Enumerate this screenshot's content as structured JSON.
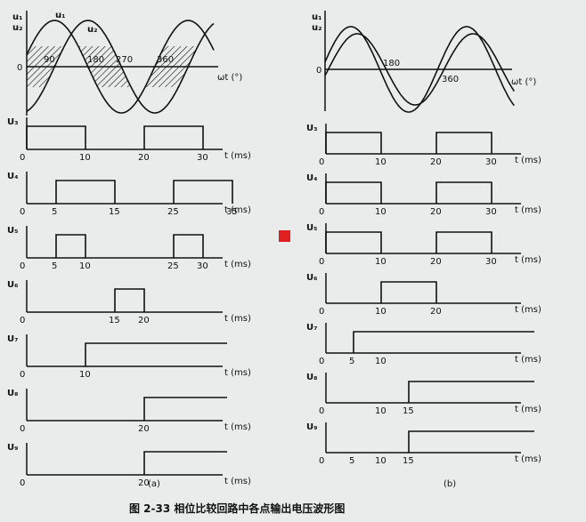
{
  "figure": {
    "caption": "图 2-33   相位比较回路中各点输出电压波形图",
    "sublabel_a": "(a)",
    "sublabel_b": "(b)",
    "marker_color": "#e02020",
    "ink_color": "#111111",
    "background_color": "#e9ecea"
  },
  "panel_a": {
    "top": {
      "u1": "u₁",
      "u2": "u₂",
      "ylabel1": "u₁",
      "ylabel2": "u₂",
      "xlabel": "ωt (°)",
      "zero": "0",
      "angle_labels": [
        "90",
        "180",
        "270",
        "360"
      ]
    },
    "rows": [
      {
        "id": "U3",
        "label": "U₃",
        "xlabel": "t (ms)",
        "ticks": [
          "0",
          "10",
          "20",
          "30"
        ],
        "pulses": [
          [
            0,
            10
          ],
          [
            20,
            30
          ]
        ]
      },
      {
        "id": "U4",
        "label": "U₄",
        "xlabel": "t (ms)",
        "ticks": [
          "0",
          "5",
          "15",
          "25",
          "35"
        ],
        "pulses": [
          [
            5,
            15
          ],
          [
            25,
            35
          ]
        ]
      },
      {
        "id": "U5",
        "label": "U₅",
        "xlabel": "t (ms)",
        "ticks": [
          "0",
          "5",
          "10",
          "25",
          "30"
        ],
        "pulses": [
          [
            5,
            10
          ],
          [
            25,
            30
          ]
        ]
      },
      {
        "id": "U6",
        "label": "U₆",
        "xlabel": "t (ms)",
        "ticks": [
          "0",
          "15",
          "20"
        ],
        "pulses": [
          [
            15,
            20
          ]
        ]
      },
      {
        "id": "U7",
        "label": "U₇",
        "xlabel": "t (ms)",
        "ticks": [
          "0",
          "10"
        ],
        "step": 10
      },
      {
        "id": "U8",
        "label": "U₈",
        "xlabel": "t (ms)",
        "ticks": [
          "0",
          "20"
        ],
        "step": 20
      },
      {
        "id": "U9",
        "label": "U₉",
        "xlabel": "t (ms)",
        "ticks": [
          "0",
          "20"
        ],
        "step": 20
      }
    ]
  },
  "panel_b": {
    "top": {
      "u1": "u₁",
      "u2": "u₂",
      "xlabel": "ωt (°)",
      "zero": "0",
      "angle_labels": [
        "180",
        "360"
      ]
    },
    "rows": [
      {
        "id": "U3",
        "label": "U₃",
        "xlabel": "t (ms)",
        "ticks": [
          "0",
          "10",
          "20",
          "30"
        ],
        "pulses": [
          [
            0,
            10
          ],
          [
            20,
            30
          ]
        ]
      },
      {
        "id": "U4",
        "label": "U₄",
        "xlabel": "t (ms)",
        "ticks": [
          "0",
          "10",
          "20",
          "30"
        ],
        "pulses": [
          [
            0,
            10
          ],
          [
            20,
            30
          ]
        ]
      },
      {
        "id": "U5",
        "label": "U₅",
        "xlabel": "t (ms)",
        "ticks": [
          "0",
          "10",
          "20",
          "30"
        ],
        "pulses": [
          [
            0,
            10
          ],
          [
            20,
            30
          ]
        ]
      },
      {
        "id": "U6",
        "label": "U₆",
        "xlabel": "t (ms)",
        "ticks": [
          "0",
          "10",
          "20"
        ],
        "pulses": [
          [
            10,
            20
          ]
        ]
      },
      {
        "id": "U7",
        "label": "U₇",
        "xlabel": "t (ms)",
        "ticks": [
          "0",
          "5",
          "10"
        ],
        "step": 5
      },
      {
        "id": "U8",
        "label": "U₈",
        "xlabel": "t (ms)",
        "ticks": [
          "0",
          "10",
          "15"
        ],
        "step": 15
      },
      {
        "id": "U9",
        "label": "U₉",
        "xlabel": "t (ms)",
        "ticks": [
          "0",
          "5",
          "10",
          "15"
        ],
        "step": 15
      }
    ]
  }
}
